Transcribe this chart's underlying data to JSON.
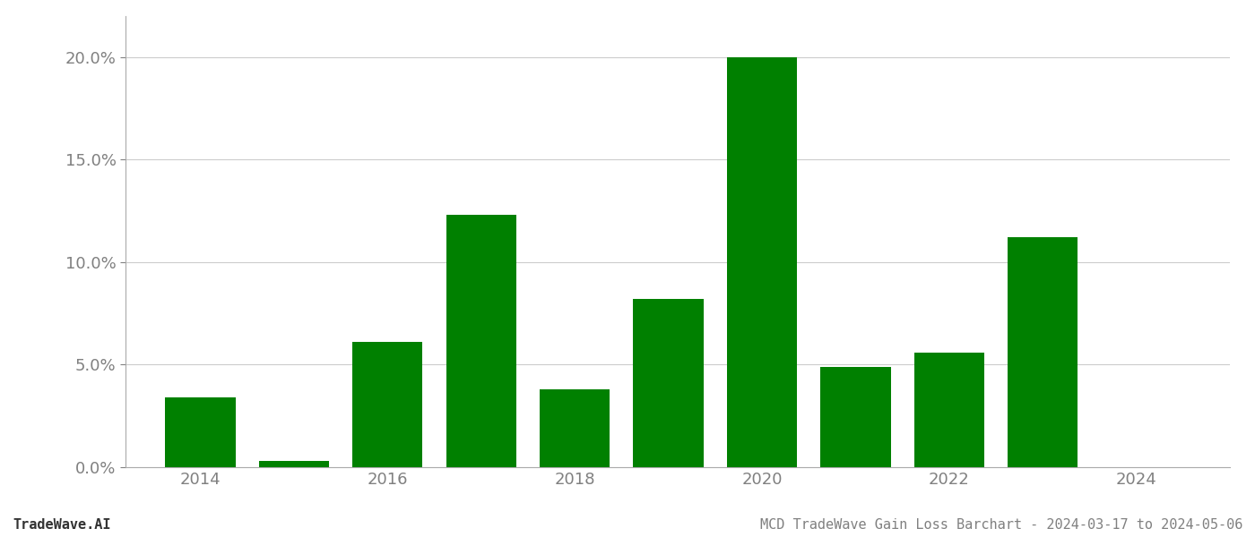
{
  "years": [
    2014,
    2015,
    2016,
    2017,
    2018,
    2019,
    2020,
    2021,
    2022,
    2023,
    2024
  ],
  "values": [
    0.034,
    0.003,
    0.061,
    0.123,
    0.038,
    0.082,
    0.2,
    0.049,
    0.056,
    0.112,
    0.0
  ],
  "bar_color": "#008000",
  "background_color": "#ffffff",
  "grid_color": "#cccccc",
  "tick_color": "#808080",
  "spine_color": "#aaaaaa",
  "title": "MCD TradeWave Gain Loss Barchart - 2024-03-17 to 2024-05-06",
  "watermark": "TradeWave.AI",
  "title_fontsize": 11,
  "watermark_fontsize": 11,
  "tick_fontsize": 13,
  "bar_width": 0.75,
  "ylim": [
    0,
    0.22
  ],
  "yticks": [
    0.0,
    0.05,
    0.1,
    0.15,
    0.2
  ],
  "xticks": [
    2014,
    2016,
    2018,
    2020,
    2022,
    2024
  ],
  "xlim": [
    2013.2,
    2025.0
  ]
}
